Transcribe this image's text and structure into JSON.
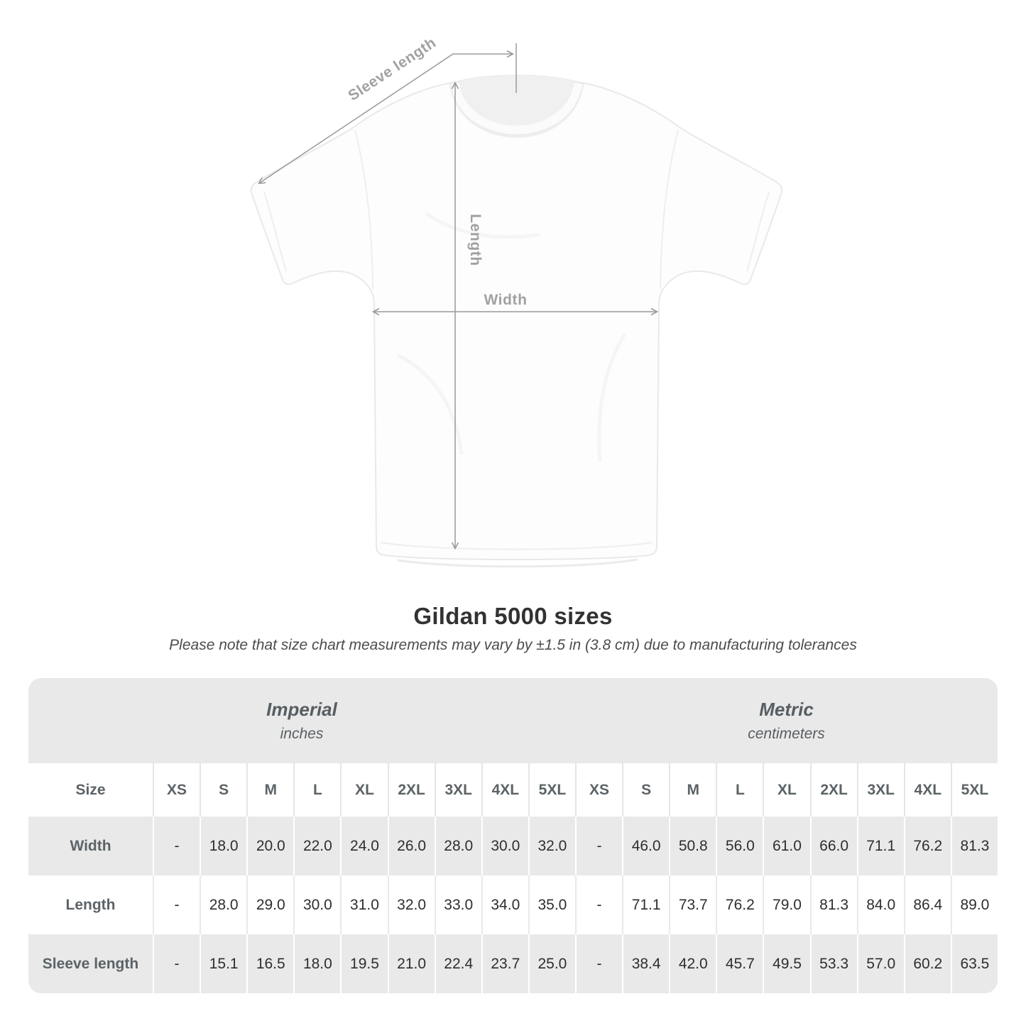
{
  "diagram": {
    "sleeve_label": "Sleeve length",
    "length_label": "Length",
    "width_label": "Width"
  },
  "title": "Gildan 5000 sizes",
  "subtitle": "Please note that size chart measurements may vary by ±1.5 in (3.8 cm) due to manufacturing tolerances",
  "chart_data": {
    "type": "table",
    "title": "Gildan 5000 sizes",
    "corner_label": "Size",
    "unit_groups": [
      {
        "label": "Imperial",
        "unit": "inches"
      },
      {
        "label": "Metric",
        "unit": "centimeters"
      }
    ],
    "sizes": [
      "XS",
      "S",
      "M",
      "L",
      "XL",
      "2XL",
      "3XL",
      "4XL",
      "5XL"
    ],
    "rows": [
      {
        "label": "Width",
        "imperial": [
          "-",
          "18.0",
          "20.0",
          "22.0",
          "24.0",
          "26.0",
          "28.0",
          "30.0",
          "32.0"
        ],
        "metric": [
          "-",
          "46.0",
          "50.8",
          "56.0",
          "61.0",
          "66.0",
          "71.1",
          "76.2",
          "81.3"
        ]
      },
      {
        "label": "Length",
        "imperial": [
          "-",
          "28.0",
          "29.0",
          "30.0",
          "31.0",
          "32.0",
          "33.0",
          "34.0",
          "35.0"
        ],
        "metric": [
          "-",
          "71.1",
          "73.7",
          "76.2",
          "79.0",
          "81.3",
          "84.0",
          "86.4",
          "89.0"
        ]
      },
      {
        "label": "Sleeve length",
        "imperial": [
          "-",
          "15.1",
          "16.5",
          "18.0",
          "19.5",
          "21.0",
          "22.4",
          "23.7",
          "25.0"
        ],
        "metric": [
          "-",
          "38.4",
          "42.0",
          "45.7",
          "49.5",
          "53.3",
          "57.0",
          "60.2",
          "63.5"
        ]
      }
    ]
  },
  "colors": {
    "row_gray": "#e9e9e9",
    "header_text": "#5c6367",
    "value_text": "#2e2e2e",
    "annotation_line": "#9a9a9a",
    "annotation_label": "#a1a1a1"
  }
}
